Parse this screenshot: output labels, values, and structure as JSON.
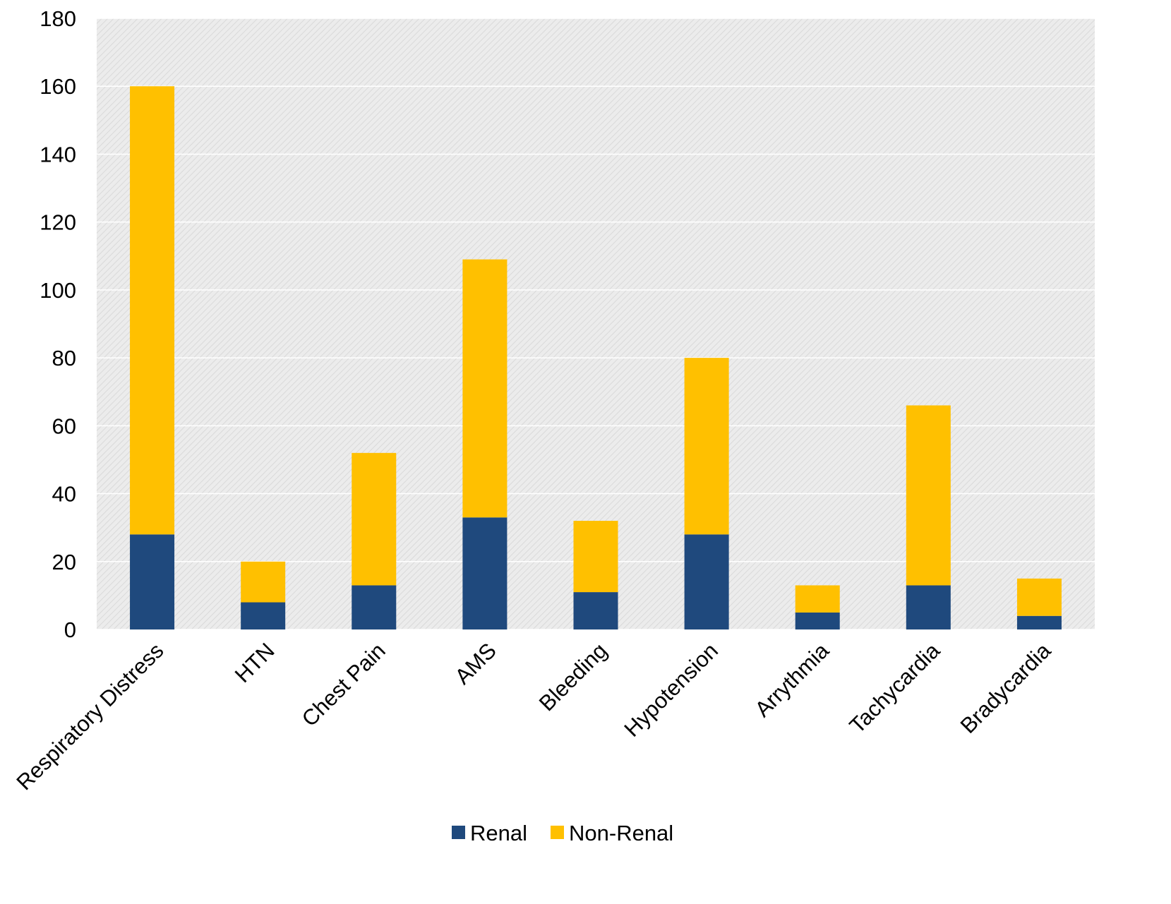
{
  "chart_data": {
    "type": "bar",
    "stacked": true,
    "title": "",
    "xlabel": "",
    "ylabel": "",
    "ylim": [
      0,
      180
    ],
    "yticks": [
      0,
      20,
      40,
      60,
      80,
      100,
      120,
      140,
      160,
      180
    ],
    "grid": true,
    "legend_placement": "bottom",
    "categories": [
      "Respiratory Distress",
      "HTN",
      "Chest Pain",
      "AMS",
      "Bleeding",
      "Hypotension",
      "Arrythmia",
      "Tachycardia",
      "Bradycardia"
    ],
    "series": [
      {
        "name": "Renal",
        "color": "#1f497d",
        "values": [
          28,
          8,
          13,
          33,
          11,
          28,
          5,
          13,
          4
        ]
      },
      {
        "name": "Non-Renal",
        "color": "#ffc000",
        "values": [
          132,
          12,
          39,
          76,
          21,
          52,
          8,
          53,
          11
        ]
      }
    ],
    "plot_background": "#e6e6e6",
    "gridline_color": "#ffffff"
  }
}
